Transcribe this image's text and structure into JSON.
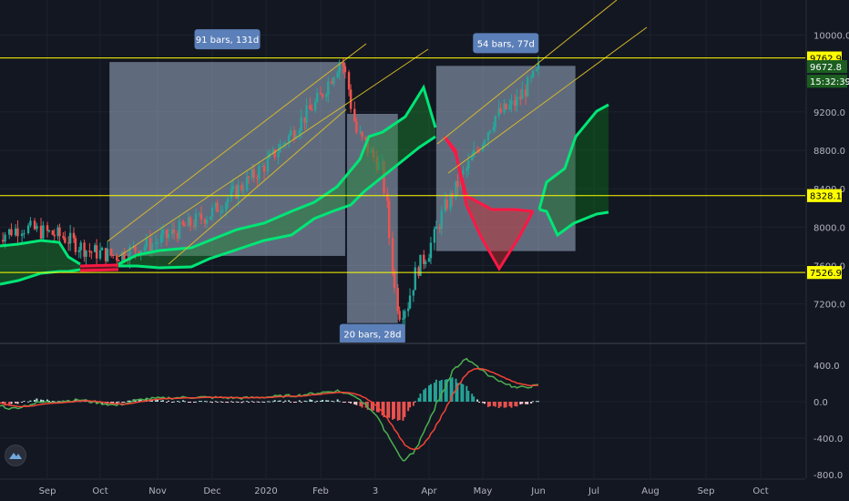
{
  "chart_data": [
    {
      "type": "candlestick",
      "title": "",
      "x_ticks": [
        "Sep",
        "Oct",
        "Nov",
        "Dec",
        "2020",
        "Feb",
        "3",
        "Apr",
        "May",
        "Jun",
        "Jul",
        "Aug",
        "Sep",
        "Oct"
      ],
      "y_ticks": [
        "10000.0",
        "9200.0",
        "8800.0",
        "8400.0",
        "8000.0",
        "7600.0",
        "7200.0"
      ],
      "ylim": [
        6900,
        10300
      ],
      "horizontal_levels": [
        {
          "label": "9762.9",
          "value": 9762.9,
          "color": "#ffff00"
        },
        {
          "label": "8328.1",
          "value": 8328.1,
          "color": "#ffff00"
        },
        {
          "label": "7526.9",
          "value": 7526.9,
          "color": "#ffff00"
        }
      ],
      "price_labels": [
        {
          "label": "9672.8",
          "value": 9672.8,
          "color": "#1b5e20"
        },
        {
          "label": "15:32:39",
          "value": 9520,
          "color": "#1b5e20"
        }
      ],
      "range_annotations": [
        {
          "label": "91 bars, 131d",
          "from": "2019-10-06",
          "to": "2020-02-14",
          "low": 7700,
          "high": 9720
        },
        {
          "label": "20 bars, 28d",
          "from": "2020-02-15",
          "to": "2020-03-14",
          "low": 7000,
          "high": 9180
        },
        {
          "label": "54 bars, 77d",
          "from": "2020-04-05",
          "to": "2020-06-21",
          "low": 7750,
          "high": 9680
        }
      ],
      "indicator_colors": {
        "cloud_bull": "#00e676",
        "cloud_bear": "#ff1744",
        "candle_up": "#26a69a",
        "candle_down": "#ef5350"
      }
    },
    {
      "type": "macd",
      "y_ticks": [
        "400.0",
        "0.0",
        "-400.0",
        "-800.0"
      ],
      "ylim": [
        -820,
        520
      ],
      "series": [
        {
          "color": "#4caf50"
        },
        {
          "color": "#f44336"
        }
      ]
    }
  ]
}
